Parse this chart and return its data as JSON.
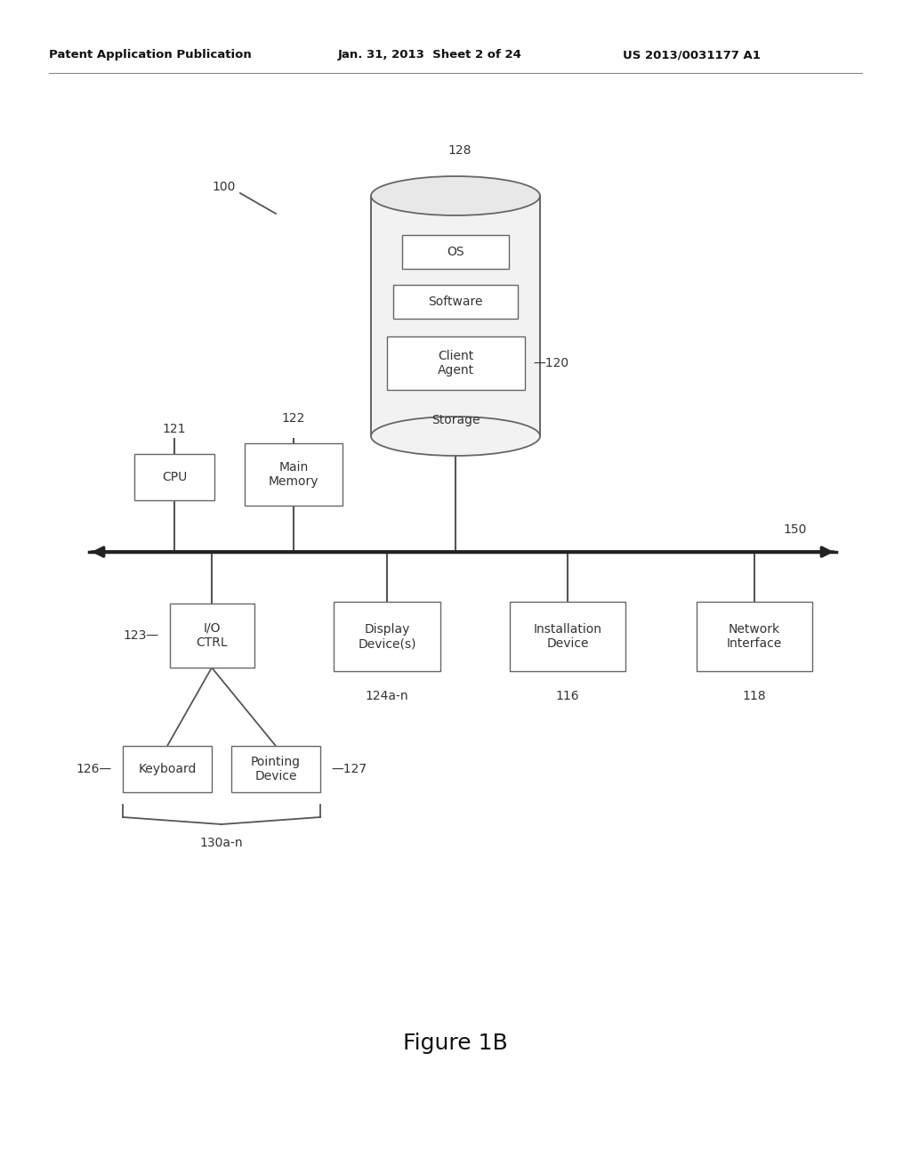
{
  "bg_color": "#ffffff",
  "header_line1": "Patent Application Publication",
  "header_line2": "Jan. 31, 2013  Sheet 2 of 24",
  "header_line3": "US 2013/0031177 A1",
  "figure_label": "Figure 1B",
  "label_100": "100",
  "label_128": "128",
  "label_120": "120",
  "label_150": "150",
  "label_121": "121",
  "label_122": "122",
  "label_123": "123",
  "label_124an": "124a-n",
  "label_116": "116",
  "label_118": "118",
  "label_126": "126",
  "label_127": "127",
  "label_130an": "130a-n",
  "box_cpu": "CPU",
  "box_main_memory": "Main\nMemory",
  "box_io_ctrl": "I/O\nCTRL",
  "box_display": "Display\nDevice(s)",
  "box_installation": "Installation\nDevice",
  "box_network": "Network\nInterface",
  "box_keyboard": "Keyboard",
  "box_pointing": "Pointing\nDevice",
  "cylinder_label": "Storage",
  "os_label": "OS",
  "software_label": "Software",
  "client_agent_label": "Client\nAgent",
  "line_color": "#555555",
  "box_color": "#ffffff",
  "box_edge_color": "#666666",
  "text_color": "#333333",
  "cyl_body_color": "#f2f2f2",
  "cyl_top_color": "#e8e8e8"
}
